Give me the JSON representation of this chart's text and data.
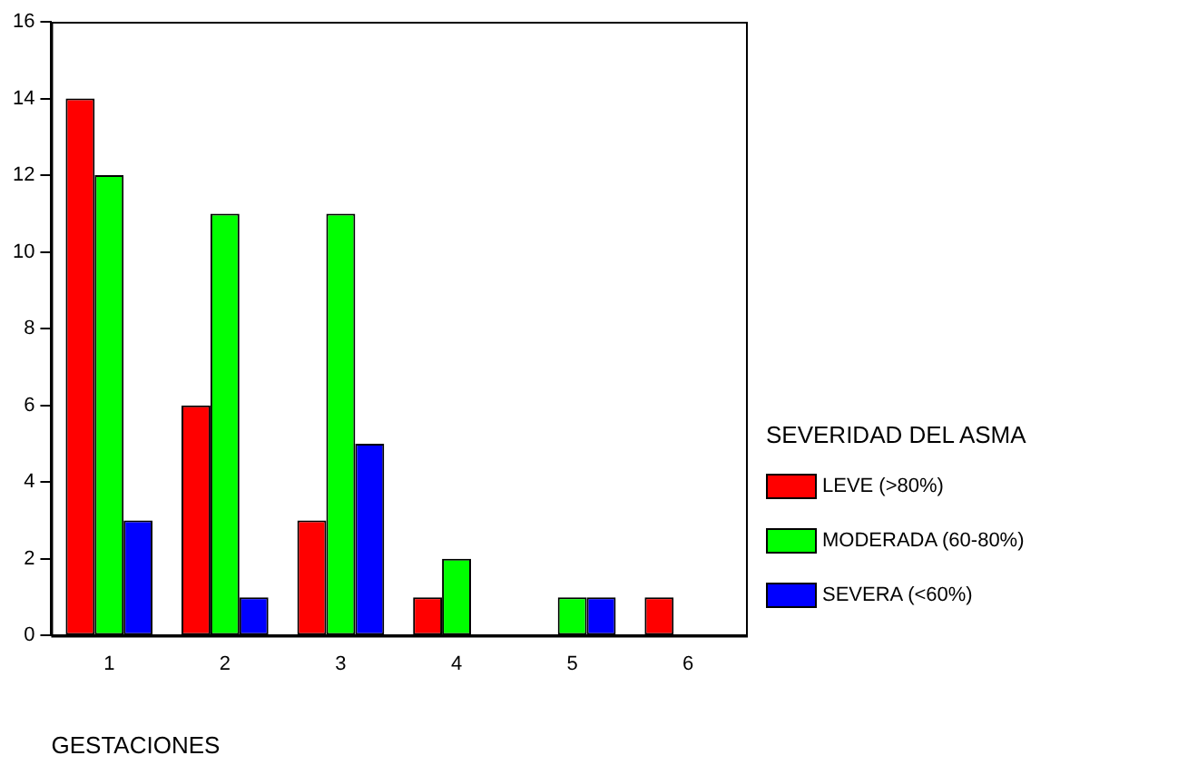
{
  "chart_data": {
    "type": "bar",
    "xlabel": "GESTACIONES",
    "legend_title": "SEVERIDAD DEL ASMA",
    "categories": [
      "1",
      "2",
      "3",
      "4",
      "5",
      "6"
    ],
    "series": [
      {
        "name": "LEVE (>80%)",
        "color": "#ff0000",
        "values": [
          14,
          6,
          3,
          1,
          0,
          1
        ]
      },
      {
        "name": "MODERADA (60-80%)",
        "color": "#00ff00",
        "values": [
          12,
          11,
          11,
          2,
          1,
          0
        ]
      },
      {
        "name": "SEVERA (<60%)",
        "color": "#0000ff",
        "values": [
          3,
          1,
          5,
          0,
          1,
          0
        ]
      }
    ],
    "ylim": [
      0,
      16
    ],
    "yticks": [
      0,
      2,
      4,
      6,
      8,
      10,
      12,
      14,
      16
    ],
    "grid": false,
    "legend": "right"
  }
}
